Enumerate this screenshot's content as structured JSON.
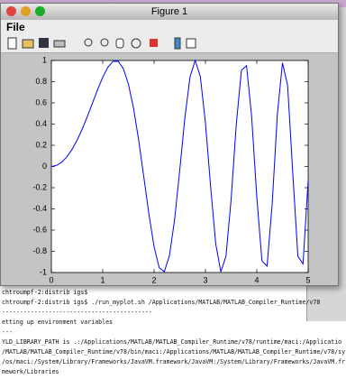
{
  "window": {
    "title": "Figure 1",
    "menu": [
      "File"
    ]
  },
  "chart_data": {
    "type": "line",
    "x": [
      0,
      0.1,
      0.2,
      0.3,
      0.4,
      0.5,
      0.6,
      0.7,
      0.8,
      0.9,
      1,
      1.1,
      1.2,
      1.3,
      1.4,
      1.5,
      1.6,
      1.7,
      1.8,
      1.9,
      2,
      2.1,
      2.2,
      2.3,
      2.4,
      2.5,
      2.6,
      2.7,
      2.8,
      2.9,
      3,
      3.1,
      3.2,
      3.3,
      3.4,
      3.5,
      3.6,
      3.7,
      3.8,
      3.9,
      4,
      4.1,
      4.2,
      4.3,
      4.4,
      4.5,
      4.6,
      4.7,
      4.8,
      4.9,
      5
    ],
    "series": [
      {
        "color": "#0000ff",
        "values": [
          0,
          0.01,
          0.04,
          0.09,
          0.159,
          0.247,
          0.352,
          0.471,
          0.597,
          0.724,
          0.841,
          0.936,
          0.991,
          0.993,
          0.925,
          0.778,
          0.549,
          0.249,
          -0.098,
          -0.451,
          -0.757,
          -0.955,
          -0.992,
          -0.838,
          -0.5,
          -0.033,
          0.459,
          0.845,
          1,
          0.85,
          0.412,
          -0.184,
          -0.728,
          -0.994,
          -0.846,
          -0.311,
          0.393,
          0.906,
          0.951,
          0.469,
          -0.288,
          -0.89,
          -0.939,
          -0.352,
          0.489,
          0.978,
          0.765,
          -0.059,
          -0.847,
          -0.918,
          -0.132
        ]
      }
    ],
    "xlim": [
      0,
      5
    ],
    "xticks": [
      0,
      1,
      2,
      3,
      4,
      5
    ],
    "ylim": [
      -1,
      1
    ],
    "yticks": [
      -1,
      -0.8,
      -0.6,
      -0.4,
      -0.2,
      0,
      0.2,
      0.4,
      0.6,
      0.8,
      1
    ]
  },
  "terminal": {
    "lines": [
      "chtroumpf-2:distrib igs$",
      "chtroumpf-2:distrib igs$ ./run_myplot.sh /Applications/MATLAB/MATLAB_Compiler_Runtime/v78",
      "------------------------------------------",
      "etting up environment variables",
      "---",
      "YLD_LIBRARY_PATH is .:/Applications/MATLAB/MATLAB_Compiler_Runtime/v78/runtime/maci:/Applicatio",
      "/MATLAB/MATLAB_Compiler_Runtime/v78/bin/maci:/Applications/MATLAB/MATLAB_Compiler_Runtime/v78/sy",
      "/os/maci:/System/Library/Frameworks/JavaVM.framework/JavaVM:/System/Library/Frameworks/JavaVM.fr",
      "mework/Libraries"
    ]
  }
}
